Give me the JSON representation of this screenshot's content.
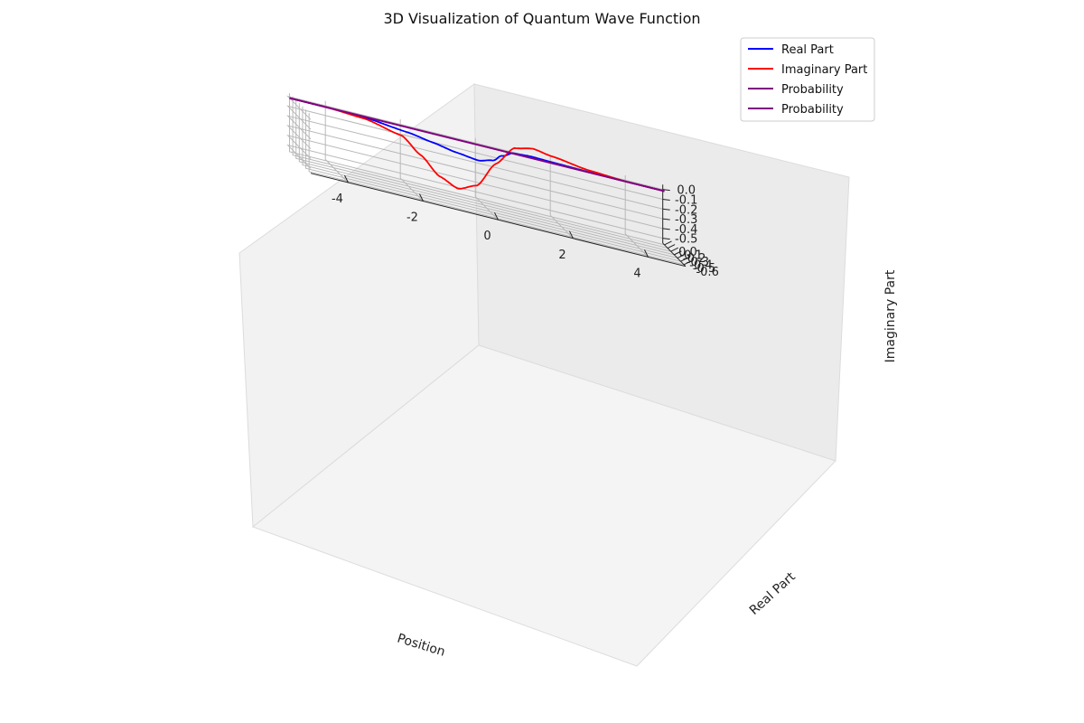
{
  "chart_data": {
    "type": "line",
    "projection": "3d",
    "title": "3D Visualization of Quantum Wave Function",
    "xlabel": "Position",
    "ylabel": "Real Part",
    "zlabel": "Imaginary Part",
    "xlim": [
      -5,
      5
    ],
    "ylim": [
      -0.65,
      0.05
    ],
    "zlim": [
      -0.55,
      0.05
    ],
    "xticks": [
      "-4",
      "-2",
      "0",
      "2",
      "4"
    ],
    "yticks": [
      "-0.6",
      "-0.5",
      "-0.4",
      "-0.3",
      "-0.2",
      "-0.1",
      "0.0"
    ],
    "zticks": [
      "-0.5",
      "-0.4",
      "-0.3",
      "-0.2",
      "-0.1",
      "0.0"
    ],
    "grid": true,
    "legend_position": "top-right",
    "series": [
      {
        "name": "Real Part",
        "color": "#0000ff",
        "x": [
          -5,
          -4,
          -3,
          -2,
          -1.5,
          -1,
          -0.5,
          0,
          0.5,
          1,
          1.5,
          2,
          3,
          4,
          5
        ],
        "y": [
          0,
          0,
          -0.03,
          -0.2,
          -0.35,
          -0.52,
          -0.62,
          -0.48,
          -0.2,
          0.02,
          0.06,
          0.04,
          0.01,
          0,
          0
        ],
        "z": [
          0,
          0,
          0,
          0,
          0,
          0,
          0,
          0,
          0,
          0,
          0,
          0,
          0,
          0,
          0
        ]
      },
      {
        "name": "Imaginary Part",
        "color": "#ff0000",
        "x": [
          -5,
          -4,
          -3,
          -2,
          -1.5,
          -1,
          -0.5,
          0,
          0.5,
          1,
          1.5,
          2,
          3,
          4,
          5
        ],
        "y": [
          0,
          0,
          0,
          0,
          0,
          0,
          0,
          0,
          0,
          0,
          0,
          0,
          0,
          0,
          0
        ],
        "z": [
          0,
          0,
          -0.02,
          -0.1,
          -0.25,
          -0.42,
          -0.5,
          -0.42,
          -0.15,
          0.06,
          0.1,
          0.07,
          0.02,
          0,
          0
        ]
      },
      {
        "name": "Probability",
        "color": "#800080",
        "x": [
          -5,
          5
        ],
        "y": [
          0,
          0
        ],
        "z": [
          0,
          0
        ]
      },
      {
        "name": "Probability",
        "color": "#800080",
        "x": [
          -5,
          5
        ],
        "y": [
          0,
          0
        ],
        "z": [
          0,
          0
        ]
      }
    ]
  }
}
